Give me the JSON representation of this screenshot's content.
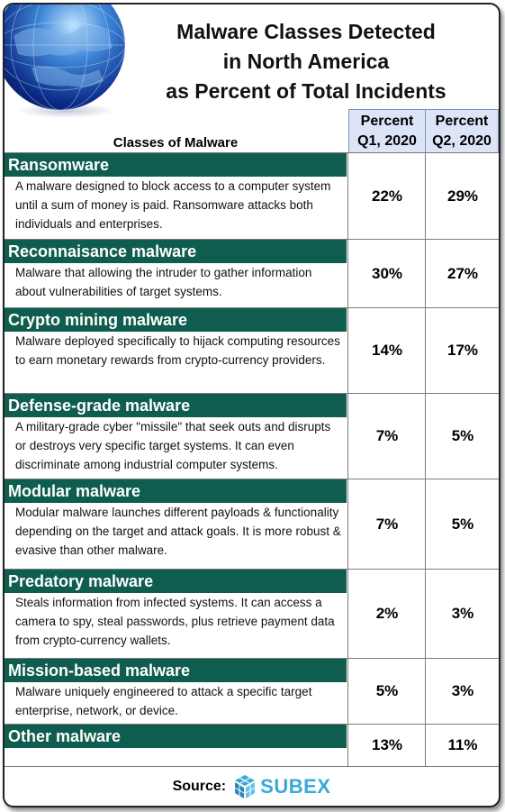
{
  "title": {
    "line1": "Malware Classes Detected",
    "line2": "in North America",
    "line3": "as Percent of Total Incidents"
  },
  "table": {
    "classes_header": "Classes of Malware",
    "q1_header_line1": "Percent",
    "q1_header_line2": "Q1, 2020",
    "q2_header_line1": "Percent",
    "q2_header_line2": "Q2, 2020",
    "rows": [
      {
        "name": "Ransomware",
        "desc": "A malware designed to block access to a computer system until a sum of money is paid.  Ransomware attacks both individuals and enterprises.",
        "q1": "22%",
        "q2": "29%"
      },
      {
        "name": "Reconnaisance malware",
        "desc": "Malware that allowing the intruder to gather information about vulnerabilities of target systems.",
        "q1": "30%",
        "q2": "27%"
      },
      {
        "name": "Crypto mining malware",
        "desc": "Malware deployed specifically to hijack computing resources to earn monetary rewards from crypto-currency providers.",
        "q1": "14%",
        "q2": "17%"
      },
      {
        "name": "Defense-grade malware",
        "desc": "A  military-grade cyber \"missile\" that seek outs and disrupts or destroys very specific target systems.  It can even discriminate among industrial computer systems.",
        "q1": "7%",
        "q2": "5%"
      },
      {
        "name": "Modular malware",
        "desc": "Modular malware launches different payloads & functionality depending on the target and attack goals. It is more robust & evasive than other malware.",
        "q1": "7%",
        "q2": "5%"
      },
      {
        "name": "Predatory malware",
        "desc": " Steals information from infected systems.  It can access a camera to spy, steal passwords, plus retrieve payment data from crypto-currency wallets.",
        "q1": "2%",
        "q2": "3%"
      },
      {
        "name": "Mission-based malware",
        "desc": "Malware uniquely engineered to attack a specific target enterprise, network, or device.",
        "q1": "5%",
        "q2": "3%"
      },
      {
        "name": "Other malware",
        "desc": "",
        "q1": "13%",
        "q2": "11%"
      }
    ]
  },
  "source": {
    "label": "Source:",
    "logo_text": "SUBEX",
    "logo_icon": "subex-cube-icon",
    "globe_icon": "globe-icon"
  },
  "colors": {
    "row_header_bg": "#0f5d4e",
    "column_header_bg": "#dce4f7",
    "logo_color": "#39a9d9"
  }
}
